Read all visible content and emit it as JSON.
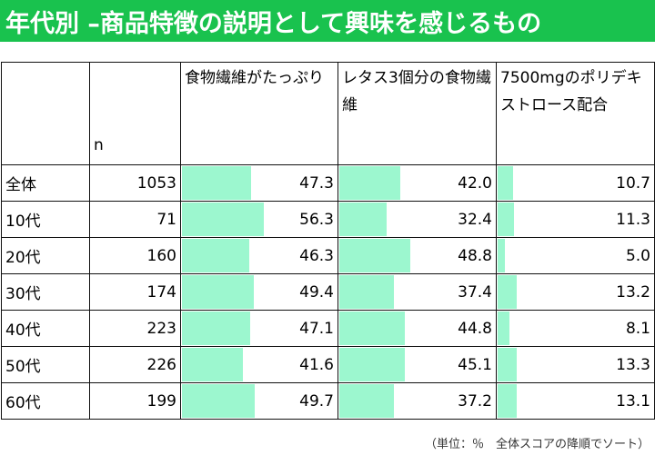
{
  "title": "年代別 –商品特徴の説明として興味を感じるもの",
  "note": "（単位：％　全体スコアの降順でソート）",
  "colors": {
    "title_bg": "#19c24e",
    "bar": "#9cf7cf"
  },
  "chart_data": {
    "type": "table",
    "n_header": "n",
    "columns": [
      "食物繊維がたっぷり",
      "レタス3個分の食物繊維",
      "7500mgのポリデキストロース配合"
    ],
    "rows": [
      {
        "label": "全体",
        "n": "1053",
        "values": [
          "47.3",
          "42.0",
          "10.7"
        ]
      },
      {
        "label": "10代",
        "n": "71",
        "values": [
          "56.3",
          "32.4",
          "11.3"
        ]
      },
      {
        "label": "20代",
        "n": "160",
        "values": [
          "46.3",
          "48.8",
          "5.0"
        ]
      },
      {
        "label": "30代",
        "n": "174",
        "values": [
          "49.4",
          "37.4",
          "13.2"
        ]
      },
      {
        "label": "40代",
        "n": "223",
        "values": [
          "47.1",
          "44.8",
          "8.1"
        ]
      },
      {
        "label": "50代",
        "n": "226",
        "values": [
          "41.6",
          "45.1",
          "13.3"
        ]
      },
      {
        "label": "60代",
        "n": "199",
        "values": [
          "49.7",
          "37.2",
          "13.1"
        ]
      }
    ]
  }
}
